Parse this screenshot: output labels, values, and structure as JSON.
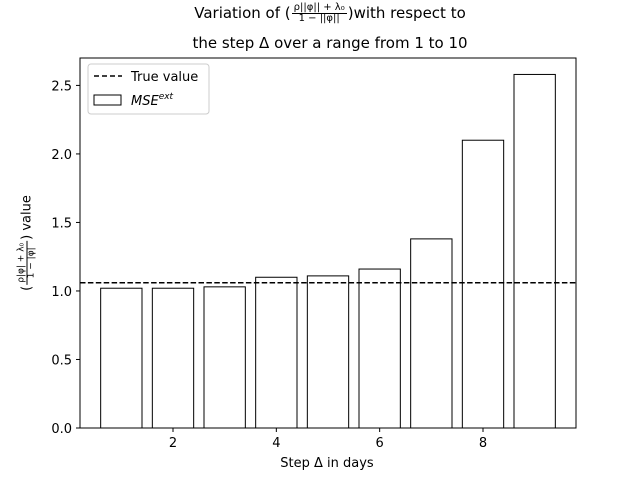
{
  "chart_data": {
    "type": "bar",
    "title": {
      "line1_prefix": "Variation of (",
      "line1_frac_num": "ρ||φ|| + λ₀",
      "line1_frac_den": "1 − ||φ||",
      "line1_suffix": ")with respect to",
      "line2": "the step Δ over a range from 1 to 10"
    },
    "xlabel": "Step Δ in days",
    "ylabel": {
      "prefix": "(",
      "frac_num": "ρ|φ| + λ₀",
      "frac_den": "1 − |φ|",
      "suffix": ") value"
    },
    "x": [
      1,
      2,
      3,
      4,
      5,
      6,
      7,
      8,
      9
    ],
    "values": [
      1.02,
      1.02,
      1.03,
      1.1,
      1.11,
      1.16,
      1.38,
      2.1,
      2.58
    ],
    "bar_series_name": "MSE",
    "bar_series_superscript": "ext",
    "true_value": 1.06,
    "true_value_label": "True value",
    "xlim": [
      0.2,
      9.8
    ],
    "ylim": [
      0,
      2.7
    ],
    "xticks": [
      2,
      4,
      6,
      8
    ],
    "yticks": [
      0.0,
      0.5,
      1.0,
      1.5,
      2.0,
      2.5
    ],
    "legend_position": "top-left",
    "grid": false,
    "colors": {
      "bar_fill": "#ffffff",
      "bar_edge": "#000000",
      "true_line": "#000000"
    }
  }
}
